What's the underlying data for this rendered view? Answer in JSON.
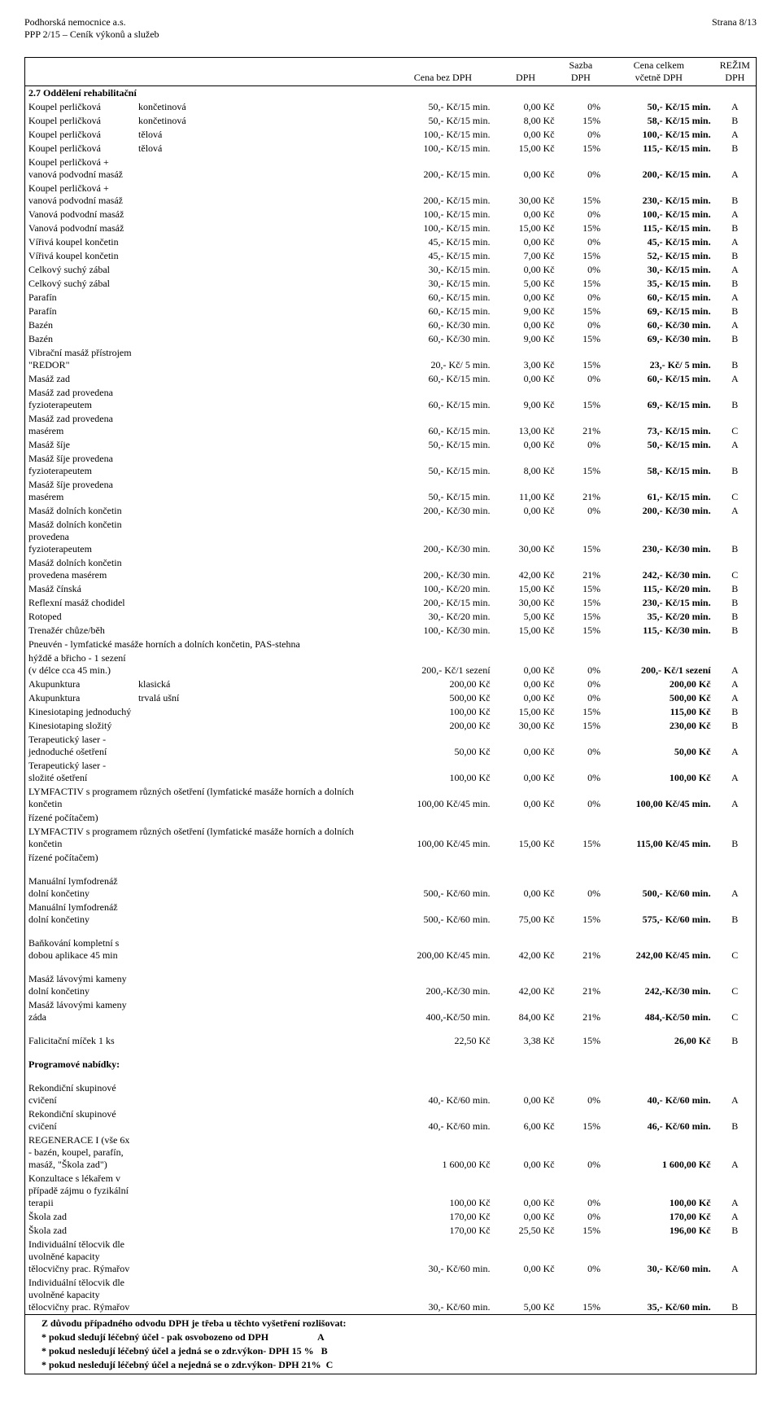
{
  "header": {
    "org": "Podhorská nemocnice a.s.",
    "doc": "PPP 2/15 – Ceník výkonů a služeb",
    "page": "Strana  8/13"
  },
  "columns": {
    "c4": "Cena bez DPH",
    "c5": "DPH",
    "c6_top": "Sazba",
    "c6_bot": "DPH",
    "c7_top": "Cena celkem",
    "c7_bot": "včetně DPH",
    "c8_top": "REŽIM",
    "c8_bot": "DPH"
  },
  "section_title": "2.7 Oddělení rehabilitační",
  "rows": [
    {
      "c1": "Koupel perličková",
      "c2": "končetinová",
      "c4": "50,- Kč/15 min.",
      "c5": "0,00 Kč",
      "c6": "0%",
      "c7": "50,- Kč/15 min.",
      "c8": "A"
    },
    {
      "c1": "Koupel perličková",
      "c2": "končetinová",
      "c4": "50,- Kč/15 min.",
      "c5": "8,00 Kč",
      "c6": "15%",
      "c7": "58,- Kč/15 min.",
      "c8": "B"
    },
    {
      "c1": "Koupel perličková",
      "c2": "tělová",
      "c4": "100,- Kč/15 min.",
      "c5": "0,00 Kč",
      "c6": "0%",
      "c7": "100,- Kč/15 min.",
      "c8": "A"
    },
    {
      "c1": "Koupel perličková",
      "c2": "tělová",
      "c4": "100,- Kč/15 min.",
      "c5": "15,00 Kč",
      "c6": "15%",
      "c7": "115,- Kč/15 min.",
      "c8": "B"
    },
    {
      "c1": "Koupel perličková + vanová podvodní masáž",
      "c2": "",
      "c4": "200,- Kč/15 min.",
      "c5": "0,00 Kč",
      "c6": "0%",
      "c7": "200,- Kč/15 min.",
      "c8": "A"
    },
    {
      "c1": "Koupel perličková + vanová podvodní masáž",
      "c2": "",
      "c4": "200,- Kč/15 min.",
      "c5": "30,00 Kč",
      "c6": "15%",
      "c7": "230,- Kč/15 min.",
      "c8": "B"
    },
    {
      "c1": "Vanová podvodní masáž",
      "c2": "",
      "c4": "100,- Kč/15 min.",
      "c5": "0,00 Kč",
      "c6": "0%",
      "c7": "100,- Kč/15 min.",
      "c8": "A"
    },
    {
      "c1": "Vanová podvodní masáž",
      "c2": "",
      "c4": "100,- Kč/15 min.",
      "c5": "15,00 Kč",
      "c6": "15%",
      "c7": "115,- Kč/15 min.",
      "c8": "B"
    },
    {
      "c1": "Vířivá koupel končetin",
      "c2": "",
      "c4": "45,- Kč/15 min.",
      "c5": "0,00 Kč",
      "c6": "0%",
      "c7": "45,- Kč/15 min.",
      "c8": "A"
    },
    {
      "c1": "Vířivá koupel končetin",
      "c2": "",
      "c4": "45,- Kč/15 min.",
      "c5": "7,00 Kč",
      "c6": "15%",
      "c7": "52,- Kč/15 min.",
      "c8": "B"
    },
    {
      "c1": "Celkový suchý zábal",
      "c2": "",
      "c4": "30,- Kč/15 min.",
      "c5": "0,00 Kč",
      "c6": "0%",
      "c7": "30,- Kč/15 min.",
      "c8": "A"
    },
    {
      "c1": "Celkový suchý zábal",
      "c2": "",
      "c4": "30,- Kč/15 min.",
      "c5": "5,00 Kč",
      "c6": "15%",
      "c7": "35,- Kč/15 min.",
      "c8": "B"
    },
    {
      "c1": "Parafín",
      "c2": "",
      "c4": "60,- Kč/15 min.",
      "c5": "0,00 Kč",
      "c6": "0%",
      "c7": "60,- Kč/15 min.",
      "c8": "A"
    },
    {
      "c1": "Parafín",
      "c2": "",
      "c4": "60,- Kč/15 min.",
      "c5": "9,00 Kč",
      "c6": "15%",
      "c7": "69,- Kč/15 min.",
      "c8": "B"
    },
    {
      "c1": "Bazén",
      "c2": "",
      "c4": "60,- Kč/30 min.",
      "c5": "0,00 Kč",
      "c6": "0%",
      "c7": "60,- Kč/30 min.",
      "c8": "A"
    },
    {
      "c1": "Bazén",
      "c2": "",
      "c4": "60,- Kč/30 min.",
      "c5": "9,00 Kč",
      "c6": "15%",
      "c7": "69,- Kč/30 min.",
      "c8": "B"
    },
    {
      "c1": "Vibrační masáž přístrojem \"REDOR\"",
      "c2": "",
      "c4": "20,- Kč/  5 min.",
      "c5": "3,00 Kč",
      "c6": "15%",
      "c7": "23,- Kč/  5 min.",
      "c8": "B"
    },
    {
      "c1": "Masáž zad",
      "c2": "",
      "c4": "60,- Kč/15 min.",
      "c5": "0,00 Kč",
      "c6": "0%",
      "c7": "60,- Kč/15 min.",
      "c8": "A"
    },
    {
      "c1": "Masáž zad provedena fyzioterapeutem",
      "c2": "",
      "c4": "60,- Kč/15 min.",
      "c5": "9,00 Kč",
      "c6": "15%",
      "c7": "69,- Kč/15 min.",
      "c8": "B"
    },
    {
      "c1": "Masáž zad provedena masérem",
      "c2": "",
      "c4": "60,- Kč/15 min.",
      "c5": "13,00 Kč",
      "c6": "21%",
      "c7": "73,- Kč/15 min.",
      "c8": "C"
    },
    {
      "c1": "Masáž šíje",
      "c2": "",
      "c4": "50,- Kč/15 min.",
      "c5": "0,00 Kč",
      "c6": "0%",
      "c7": "50,- Kč/15 min.",
      "c8": "A"
    },
    {
      "c1": "Masáž šíje provedena fyzioterapeutem",
      "c2": "",
      "c4": "50,- Kč/15 min.",
      "c5": "8,00 Kč",
      "c6": "15%",
      "c7": "58,- Kč/15 min.",
      "c8": "B"
    },
    {
      "c1": "Masáž šíje provedena masérem",
      "c2": "",
      "c4": "50,- Kč/15 min.",
      "c5": "11,00 Kč",
      "c6": "21%",
      "c7": "61,- Kč/15 min.",
      "c8": "C"
    },
    {
      "c1": "Masáž dolních končetin",
      "c2": "",
      "c4": "200,- Kč/30 min.",
      "c5": "0,00 Kč",
      "c6": "0%",
      "c7": "200,- Kč/30 min.",
      "c8": "A"
    },
    {
      "c1": "Masáž dolních končetin  provedena fyzioterapeutem",
      "c2": "",
      "c4": "200,- Kč/30 min.",
      "c5": "30,00 Kč",
      "c6": "15%",
      "c7": "230,- Kč/30 min.",
      "c8": "B"
    },
    {
      "c1": "Masáž dolních končetin provedena masérem",
      "c2": "",
      "c4": "200,- Kč/30 min.",
      "c5": "42,00 Kč",
      "c6": "21%",
      "c7": "242,- Kč/30 min.",
      "c8": "C"
    },
    {
      "c1": "Masáž čínská",
      "c2": "",
      "c4": "100,- Kč/20 min.",
      "c5": "15,00 Kč",
      "c6": "15%",
      "c7": "115,- Kč/20 min.",
      "c8": "B"
    },
    {
      "c1": "Reflexní masáž chodidel",
      "c2": "",
      "c4": "200,- Kč/15 min.",
      "c5": "30,00 Kč",
      "c6": "15%",
      "c7": "230,- Kč/15 min.",
      "c8": "B"
    },
    {
      "c1": "Rotoped",
      "c2": "",
      "c4": "30,- Kč/20 min.",
      "c5": "5,00 Kč",
      "c6": "15%",
      "c7": "35,- Kč/20 min.",
      "c8": "B"
    },
    {
      "c1": "Trenažér chůze/běh",
      "c2": "",
      "c4": "100,- Kč/30 min.",
      "c5": "15,00 Kč",
      "c6": "15%",
      "c7": "115,- Kč/30 min.",
      "c8": "B"
    }
  ],
  "pneuven_line1": "Pneuvén - lymfatické masáže horních a dolních končetin, PAS-stehna",
  "pneuven_row": {
    "c1": "hýždě a břicho - 1 sezení (v délce cca 45 min.)",
    "c2": "",
    "c4": "200,- Kč/1 sezení",
    "c5": "0,00 Kč",
    "c6": "0%",
    "c7": "200,- Kč/1 sezení",
    "c8": "A"
  },
  "rows2": [
    {
      "c1": "Akupunktura",
      "c2": "klasická",
      "c4": "200,00 Kč",
      "c5": "0,00 Kč",
      "c6": "0%",
      "c7": "200,00 Kč",
      "c8": "A"
    },
    {
      "c1": "Akupunktura",
      "c2": "trvalá ušní",
      "c4": "500,00 Kč",
      "c5": "0,00 Kč",
      "c6": "0%",
      "c7": "500,00 Kč",
      "c8": "A"
    },
    {
      "c1": "Kinesiotaping jednoduchý",
      "c2": "",
      "c4": "100,00 Kč",
      "c5": "15,00 Kč",
      "c6": "15%",
      "c7": "115,00 Kč",
      "c8": "B"
    },
    {
      "c1": "Kinesiotaping složitý",
      "c2": "",
      "c4": "200,00 Kč",
      "c5": "30,00 Kč",
      "c6": "15%",
      "c7": "230,00 Kč",
      "c8": "B"
    },
    {
      "c1": "Terapeutický laser - jednoduché ošetření",
      "c2": "",
      "c4": "50,00 Kč",
      "c5": "0,00 Kč",
      "c6": "0%",
      "c7": "50,00 Kč",
      "c8": "A"
    },
    {
      "c1": "Terapeutický laser - složité ošetření",
      "c2": "",
      "c4": "100,00 Kč",
      "c5": "0,00 Kč",
      "c6": "0%",
      "c7": "100,00 Kč",
      "c8": "A"
    }
  ],
  "lymf_a": {
    "t1": "LYMFACTIV s programem různých ošetření (lymfatické masáže horních a dolních končetin",
    "t2": "řízené počítačem)",
    "c4": "100,00 Kč/45 min.",
    "c5": "0,00 Kč",
    "c6": "0%",
    "c7": "100,00 Kč/45 min.",
    "c8": "A"
  },
  "lymf_b": {
    "t1": "LYMFACTIV s programem různých ošetření (lymfatické masáže horních a dolních končetin",
    "t2": "řízené počítačem)",
    "c4": "100,00 Kč/45 min.",
    "c5": "15,00 Kč",
    "c6": "15%",
    "c7": "115,00 Kč/45 min.",
    "c8": "B"
  },
  "rows3": [
    {
      "c1": "Manuální lymfodrenáž dolní končetiny",
      "c2": "",
      "c4": "500,- Kč/60 min.",
      "c5": "0,00 Kč",
      "c6": "0%",
      "c7": "500,- Kč/60 min.",
      "c8": "A"
    },
    {
      "c1": "Manuální lymfodrenáž dolní končetiny",
      "c2": "",
      "c4": "500,- Kč/60 min.",
      "c5": "75,00 Kč",
      "c6": "15%",
      "c7": "575,- Kč/60 min.",
      "c8": "B"
    }
  ],
  "rows4": [
    {
      "c1": "Baňkování kompletní s dobou aplikace  45 min",
      "c2": "",
      "c4": "200,00 Kč/45 min.",
      "c5": "42,00 Kč",
      "c6": "21%",
      "c7": "242,00 Kč/45 min.",
      "c8": "C"
    }
  ],
  "rows5": [
    {
      "c1": "Masáž lávovými kameny dolní končetiny",
      "c2": "",
      "c4": "200,-Kč/30 min.",
      "c5": "42,00 Kč",
      "c6": "21%",
      "c7": "242,-Kč/30 min.",
      "c8": "C"
    },
    {
      "c1": "Masáž lávovými kameny záda",
      "c2": "",
      "c4": "400,-Kč/50 min.",
      "c5": "84,00 Kč",
      "c6": "21%",
      "c7": "484,-Kč/50 min.",
      "c8": "C"
    }
  ],
  "rows6": [
    {
      "c1": "Falicitační míček  1 ks",
      "c2": "",
      "c4": "22,50 Kč",
      "c5": "3,38 Kč",
      "c6": "15%",
      "c7": "26,00 Kč",
      "c8": "B"
    }
  ],
  "prog_title": "Programové nabídky:",
  "rows7": [
    {
      "c1": "Rekondiční skupinové cvičení",
      "c2": "",
      "c4": "40,- Kč/60 min.",
      "c5": "0,00 Kč",
      "c6": "0%",
      "c7": "40,- Kč/60 min.",
      "c8": "A"
    },
    {
      "c1": "Rekondiční skupinové cvičení",
      "c2": "",
      "c4": "40,- Kč/60 min.",
      "c5": "6,00 Kč",
      "c6": "15%",
      "c7": "46,- Kč/60 min.",
      "c8": "B"
    },
    {
      "c1": "REGENERACE I (vše 6x - bazén, koupel, parafín, masáž, \"Škola zad\")",
      "c2": "",
      "c4": "1 600,00 Kč",
      "c5": "0,00 Kč",
      "c6": "0%",
      "c7": "1 600,00 Kč",
      "c8": "A"
    },
    {
      "c1": "Konzultace s lékařem v případě zájmu o fyzikální terapii",
      "c2": "",
      "c4": "100,00 Kč",
      "c5": "0,00 Kč",
      "c6": "0%",
      "c7": "100,00 Kč",
      "c8": "A"
    },
    {
      "c1": "Škola zad",
      "c2": "",
      "c4": "170,00 Kč",
      "c5": "0,00 Kč",
      "c6": "0%",
      "c7": "170,00 Kč",
      "c8": "A"
    },
    {
      "c1": "Škola zad",
      "c2": "",
      "c4": "170,00 Kč",
      "c5": "25,50 Kč",
      "c6": "15%",
      "c7": "196,00 Kč",
      "c8": "B"
    },
    {
      "c1": "Individuální tělocvik dle uvolněné kapacity tělocvičny prac. Rýmařov",
      "c2": "",
      "c4": "30,- Kč/60 min.",
      "c5": "0,00 Kč",
      "c6": "0%",
      "c7": "30,- Kč/60 min.",
      "c8": "A"
    },
    {
      "c1": "Individuální tělocvik dle uvolněné kapacity tělocvičny prac. Rýmařov",
      "c2": "",
      "c4": "30,- Kč/60 min.",
      "c5": "5,00 Kč",
      "c6": "15%",
      "c7": "35,- Kč/60 min.",
      "c8": "B"
    }
  ],
  "footer": {
    "title": "Z důvodu případného odvodu DPH je třeba u těchto vyšetření rozlišovat:",
    "lineA": "* pokud sledují léčebný účel - pak osvobozeno od DPH",
    "codeA": "A",
    "lineB": "* pokud nesledují léčebný účel  a jedná se o zdr.výkon-  DPH 15 %",
    "codeB": "B",
    "lineC": "* pokud nesledují léčebný účel  a nejedná se o zdr.výkon-  DPH 21%",
    "codeC": "C"
  },
  "widths": {
    "c1": 120,
    "c2": 280,
    "c4": 110,
    "c5": 70,
    "c6": 50,
    "c7": 120,
    "c8": 45
  }
}
